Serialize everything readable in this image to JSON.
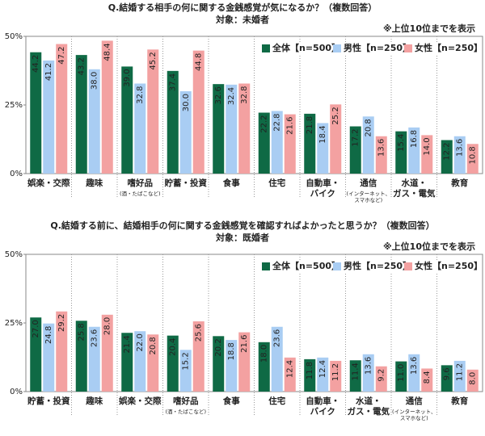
{
  "chart_data": [
    {
      "type": "bar",
      "title": "Q.結婚する相手の何に関する金銭感覚が気になるか？（複数回答）",
      "subtitle": "対象：未婚者",
      "note": "※上位10位までを表示",
      "categories": [
        "娯楽・交際",
        "趣味",
        "嗜好品",
        "貯蓄・投資",
        "食事",
        "住宅",
        "自動車・\nバイク",
        "通信",
        "水道・\nガス・電気",
        "教育"
      ],
      "category_notes": [
        null,
        null,
        "(酒・たばこなど)",
        null,
        null,
        null,
        null,
        "(インターネット、\nスマホなど)",
        null,
        null
      ],
      "series": [
        {
          "name": "全体【n=500】",
          "color": "#0f6a45",
          "values": [
            44.2,
            43.2,
            39.0,
            37.4,
            32.6,
            22.2,
            21.8,
            17.2,
            15.4,
            12.2
          ],
          "value_labels": [
            "44.2",
            "43.2",
            "39.0",
            "37.4",
            "32.6",
            "22.2",
            "21.8",
            "17.2",
            "15.4",
            "12.2"
          ]
        },
        {
          "name": "男性【n=250】",
          "color": "#a9cdf3",
          "values": [
            41.2,
            38.0,
            32.8,
            30.0,
            32.4,
            22.8,
            18.4,
            20.8,
            16.8,
            13.6
          ],
          "value_labels": [
            "41.2",
            "38.0",
            "32.8",
            "30.0",
            "32.4",
            "22.8",
            "18.4",
            "20.8",
            "16.8",
            "13.6"
          ]
        },
        {
          "name": "女性【n=250】",
          "color": "#f3a1a1",
          "values": [
            47.2,
            48.4,
            45.2,
            44.8,
            32.8,
            21.6,
            25.2,
            13.6,
            14.0,
            10.8
          ],
          "value_labels": [
            "47.2",
            "48.4",
            "45.2",
            "44.8",
            "32.8",
            "21.6",
            "25.2",
            "13.6",
            "14.0",
            "10.8"
          ]
        }
      ],
      "ylim": [
        0,
        50
      ],
      "yticks": [
        {
          "value": 0,
          "label": "0%"
        },
        {
          "value": 25,
          "label": "25%"
        },
        {
          "value": 50,
          "label": "50%"
        }
      ],
      "legend": "top-right"
    },
    {
      "type": "bar",
      "title": "Q.結婚する前に、結婚相手の何に関する金銭感覚を確認すればよかったと思うか？（複数回答）",
      "subtitle": "対象：既婚者",
      "note": "※上位10位までを表示",
      "categories": [
        "貯蓄・投資",
        "趣味",
        "娯楽・交際",
        "嗜好品",
        "食事",
        "住宅",
        "自動車・\nバイク",
        "水道・\nガス・電気",
        "通信",
        "教育"
      ],
      "category_notes": [
        null,
        null,
        null,
        "(酒・たばこなど)",
        null,
        null,
        null,
        null,
        "(インターネット、\nスマホなど)",
        null
      ],
      "series": [
        {
          "name": "全体【n=500】",
          "color": "#0f6a45",
          "values": [
            27.0,
            25.8,
            21.4,
            20.4,
            20.2,
            18.0,
            11.8,
            11.4,
            11.0,
            9.6
          ],
          "value_labels": [
            "27.0",
            "25.8",
            "21.4",
            "20.4",
            "20.2",
            "18.0",
            "11.8",
            "11.4",
            "11.0",
            "9.6"
          ]
        },
        {
          "name": "男性【n=250】",
          "color": "#a9cdf3",
          "values": [
            24.8,
            23.6,
            22.0,
            15.2,
            18.8,
            23.6,
            12.4,
            13.6,
            13.6,
            11.2
          ],
          "value_labels": [
            "24.8",
            "23.6",
            "22.0",
            "15.2",
            "18.8",
            "23.6",
            "12.4",
            "13.6",
            "13.6",
            "11.2"
          ]
        },
        {
          "name": "女性【n=250】",
          "color": "#f3a1a1",
          "values": [
            29.2,
            28.0,
            20.8,
            25.6,
            21.6,
            12.4,
            11.2,
            9.2,
            8.4,
            8.0
          ],
          "value_labels": [
            "29.2",
            "28.0",
            "20.8",
            "25.6",
            "21.6",
            "12.4",
            "11.2",
            "9.2",
            "8.4",
            "8.0"
          ]
        }
      ],
      "ylim": [
        0,
        50
      ],
      "yticks": [
        {
          "value": 0,
          "label": "0%"
        },
        {
          "value": 25,
          "label": "25%"
        },
        {
          "value": 50,
          "label": "50%"
        }
      ],
      "legend": "top-right"
    }
  ]
}
